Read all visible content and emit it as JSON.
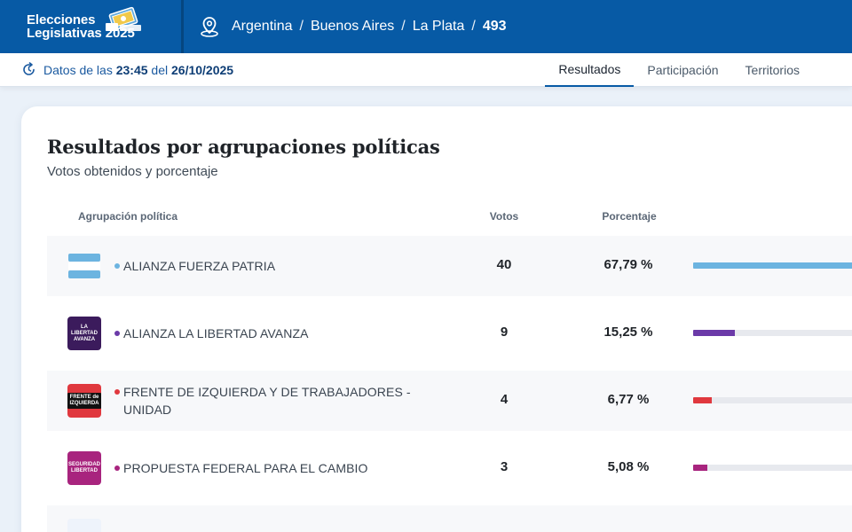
{
  "brand": {
    "line1": "Elecciones",
    "line2": "Legislativas 2025"
  },
  "breadcrumb": [
    "Argentina",
    "Buenos Aires",
    "La Plata",
    "493"
  ],
  "update": {
    "prefix": "Datos de las",
    "time": "23:45",
    "mid": "del",
    "date": "26/10/2025"
  },
  "tabs": [
    {
      "label": "Resultados",
      "active": true
    },
    {
      "label": "Participación",
      "active": false
    },
    {
      "label": "Territorios",
      "active": false
    }
  ],
  "card": {
    "title": "Resultados por agrupaciones políticas",
    "subtitle": "Votos obtenidos y porcentaje",
    "headers": {
      "party": "Agrupación política",
      "votes": "Votos",
      "percent": "Porcentaje"
    }
  },
  "parties": [
    {
      "name": "ALIANZA FUERZA PATRIA",
      "votes": "40",
      "percent": "67,79 %",
      "share": 67.79,
      "color": "#6cb4e0",
      "logo_text": ""
    },
    {
      "name": "ALIANZA LA LIBERTAD AVANZA",
      "votes": "9",
      "percent": "15,25 %",
      "share": 15.25,
      "color": "#6b3aa8",
      "logo_text": "LA LIBERTAD AVANZA"
    },
    {
      "name": "FRENTE DE IZQUIERDA Y DE TRABAJADORES - UNIDAD",
      "votes": "4",
      "percent": "6,77 %",
      "share": 6.77,
      "color": "#e0383e",
      "logo_text": "FRENTE de IZQUIERDA"
    },
    {
      "name": "PROPUESTA FEDERAL PARA EL CAMBIO",
      "votes": "3",
      "percent": "5,08 %",
      "share": 5.08,
      "color": "#a8247e",
      "logo_text": "SEGURIDAD LIBERTAD"
    }
  ]
}
